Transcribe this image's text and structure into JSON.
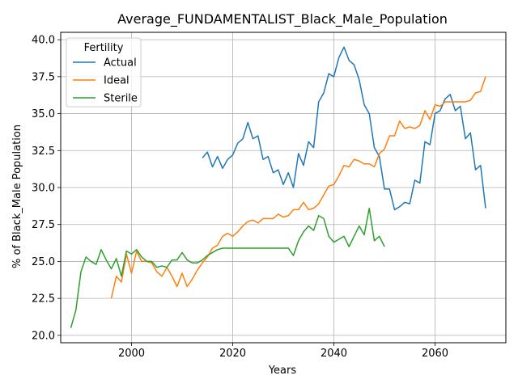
{
  "chart_data": {
    "type": "line",
    "title": "Average_FUNDAMENTALIST_Black_Male_Population",
    "xlabel": "Years",
    "ylabel": "% of Black_Male Population",
    "xlim": [
      1986,
      2074
    ],
    "ylim": [
      19.5,
      40.5
    ],
    "xticks": [
      2000,
      2020,
      2040,
      2060
    ],
    "yticks": [
      20.0,
      22.5,
      25.0,
      27.5,
      30.0,
      32.5,
      35.0,
      37.5,
      40.0
    ],
    "xtick_labels": [
      "2000",
      "2020",
      "2040",
      "2060"
    ],
    "ytick_labels": [
      "20.0",
      "22.5",
      "25.0",
      "27.5",
      "30.0",
      "32.5",
      "35.0",
      "37.5",
      "40.0"
    ],
    "grid": true,
    "legend": {
      "title": "Fertility",
      "placement": "top-left"
    },
    "series": [
      {
        "name": "Actual",
        "color": "#1f77b4",
        "x": [
          2014,
          2015,
          2016,
          2017,
          2018,
          2019,
          2020,
          2021,
          2022,
          2023,
          2024,
          2025,
          2026,
          2027,
          2028,
          2029,
          2030,
          2031,
          2032,
          2033,
          2034,
          2035,
          2036,
          2037,
          2038,
          2039,
          2040,
          2041,
          2042,
          2043,
          2044,
          2045,
          2046,
          2047,
          2048,
          2049,
          2050,
          2051,
          2052,
          2053,
          2054,
          2055,
          2056,
          2057,
          2058,
          2059,
          2060,
          2061,
          2062,
          2063,
          2064,
          2065,
          2066,
          2067,
          2068,
          2069,
          2070
        ],
        "y": [
          32.0,
          32.4,
          31.4,
          32.1,
          31.3,
          31.9,
          32.2,
          33.0,
          33.3,
          34.4,
          33.3,
          33.5,
          31.9,
          32.1,
          31.0,
          31.2,
          30.2,
          31.0,
          30.0,
          32.3,
          31.5,
          33.1,
          32.7,
          35.8,
          36.4,
          37.7,
          37.5,
          38.8,
          39.5,
          38.6,
          38.3,
          37.3,
          35.6,
          35.0,
          32.7,
          32.1,
          29.9,
          29.9,
          28.5,
          28.7,
          29.0,
          28.9,
          30.5,
          30.3,
          33.1,
          32.9,
          35.0,
          35.2,
          36.0,
          36.3,
          35.2,
          35.5,
          33.3,
          33.7,
          31.2,
          31.5,
          28.6
        ]
      },
      {
        "name": "Ideal",
        "color": "#ff7f0e",
        "x": [
          1996,
          1997,
          1998,
          1999,
          2000,
          2001,
          2002,
          2003,
          2004,
          2005,
          2006,
          2007,
          2008,
          2009,
          2010,
          2011,
          2012,
          2013,
          2014,
          2015,
          2016,
          2017,
          2018,
          2019,
          2020,
          2021,
          2022,
          2023,
          2024,
          2025,
          2026,
          2027,
          2028,
          2029,
          2030,
          2031,
          2032,
          2033,
          2034,
          2035,
          2036,
          2037,
          2038,
          2039,
          2040,
          2041,
          2042,
          2043,
          2044,
          2045,
          2046,
          2047,
          2048,
          2049,
          2050,
          2051,
          2052,
          2053,
          2054,
          2055,
          2056,
          2057,
          2058,
          2059,
          2060,
          2061,
          2062,
          2063,
          2064,
          2065,
          2066,
          2067,
          2068,
          2069,
          2070
        ],
        "y": [
          22.5,
          24.0,
          23.6,
          25.5,
          24.2,
          25.7,
          25.0,
          25.0,
          24.9,
          24.3,
          24.0,
          24.6,
          24.0,
          23.3,
          24.2,
          23.3,
          23.8,
          24.4,
          24.9,
          25.3,
          25.9,
          26.1,
          26.7,
          26.9,
          26.7,
          27.0,
          27.4,
          27.7,
          27.8,
          27.6,
          27.9,
          27.9,
          27.9,
          28.2,
          28.0,
          28.1,
          28.5,
          28.5,
          29.0,
          28.5,
          28.6,
          28.9,
          29.5,
          30.1,
          30.2,
          30.8,
          31.5,
          31.4,
          31.9,
          31.8,
          31.6,
          31.6,
          31.4,
          32.3,
          32.6,
          33.5,
          33.5,
          34.5,
          34.0,
          34.1,
          34.0,
          34.2,
          35.2,
          34.6,
          35.6,
          35.5,
          35.8,
          35.8,
          35.8,
          35.8,
          35.8,
          35.9,
          36.4,
          36.5,
          37.5
        ]
      },
      {
        "name": "Sterile",
        "color": "#2ca02c",
        "x": [
          1988,
          1989,
          1990,
          1991,
          1992,
          1993,
          1994,
          1995,
          1996,
          1997,
          1998,
          1999,
          2000,
          2001,
          2002,
          2003,
          2004,
          2005,
          2006,
          2007,
          2008,
          2009,
          2010,
          2011,
          2012,
          2013,
          2014,
          2015,
          2016,
          2017,
          2018,
          2019,
          2020,
          2021,
          2022,
          2023,
          2024,
          2025,
          2026,
          2027,
          2028,
          2029,
          2030,
          2031,
          2032,
          2033,
          2034,
          2035,
          2036,
          2037,
          2038,
          2039,
          2040,
          2041,
          2042,
          2043,
          2044,
          2045,
          2046,
          2047,
          2048,
          2049,
          2050
        ],
        "y": [
          20.5,
          21.7,
          24.3,
          25.3,
          25.0,
          24.8,
          25.8,
          25.1,
          24.5,
          25.2,
          24.0,
          25.7,
          25.5,
          25.8,
          25.3,
          25.0,
          25.0,
          24.6,
          24.7,
          24.6,
          25.1,
          25.1,
          25.6,
          25.1,
          24.9,
          24.9,
          25.1,
          25.4,
          25.6,
          25.8,
          25.9,
          25.9,
          25.9,
          25.9,
          25.9,
          25.9,
          25.9,
          25.9,
          25.9,
          25.9,
          25.9,
          25.9,
          25.9,
          25.9,
          25.4,
          26.4,
          27.0,
          27.4,
          27.1,
          28.1,
          27.9,
          26.7,
          26.3,
          26.5,
          26.7,
          26.0,
          26.7,
          27.4,
          26.8,
          28.6,
          26.4,
          26.7,
          26.0
        ]
      }
    ]
  }
}
